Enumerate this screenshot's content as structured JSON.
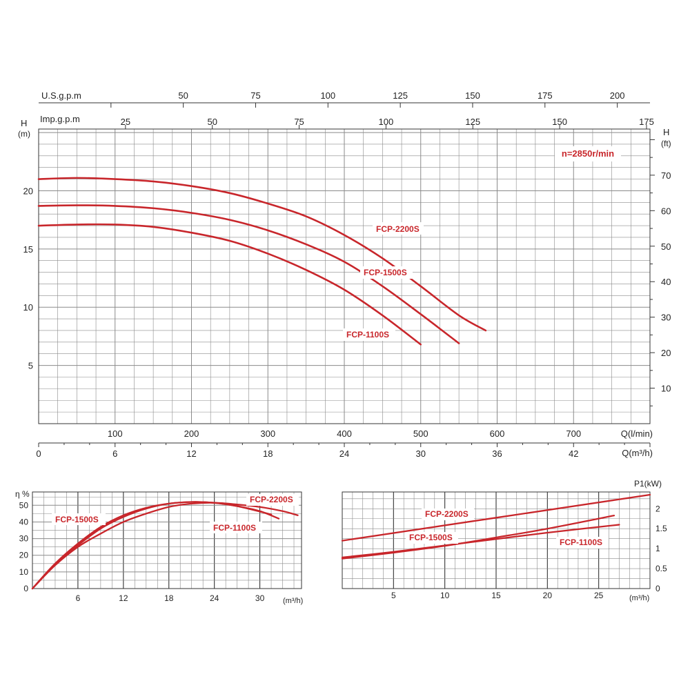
{
  "colors": {
    "curve": "#c8262b",
    "grid": "#8a8a8a",
    "axis": "#333333",
    "text": "#222222",
    "label_bg": "#ffffff"
  },
  "chart_data": [
    {
      "type": "line",
      "name": "head-curve",
      "annotation": "n=2850r/min",
      "axes": {
        "usgpm": {
          "label": "U.S.g.p.m",
          "ticks": [
            50,
            75,
            100,
            125,
            150,
            175,
            200
          ],
          "range": [
            0,
            211.3
          ]
        },
        "impgpm": {
          "label": "Imp.g.p.m",
          "ticks": [
            25,
            50,
            75,
            100,
            125,
            150,
            175
          ],
          "range": [
            0,
            176
          ]
        },
        "h_m": {
          "label_top": "H",
          "label_unit": "(m)",
          "ticks": [
            5,
            10,
            15,
            20
          ],
          "range": [
            0,
            25.3
          ]
        },
        "h_ft": {
          "label_top": "H",
          "label_unit": "(ft)",
          "ticks": [
            10,
            20,
            30,
            40,
            50,
            60,
            70
          ],
          "range": [
            0,
            83
          ]
        },
        "q_lmin": {
          "label": "Q(l/min)",
          "ticks": [
            100,
            200,
            300,
            400,
            500,
            600,
            700
          ],
          "range": [
            0,
            800
          ]
        },
        "q_m3h": {
          "label": "Q(m³/h)",
          "ticks": [
            0,
            6,
            12,
            18,
            24,
            30,
            36,
            42
          ],
          "range": [
            0,
            48
          ]
        }
      },
      "grid": true,
      "series": [
        {
          "name": "FCP-2200S",
          "q_lmin": [
            0,
            50,
            100,
            150,
            200,
            250,
            300,
            350,
            400,
            450,
            500,
            550,
            585
          ],
          "h_m": [
            21.0,
            21.1,
            21.0,
            20.8,
            20.4,
            19.8,
            18.9,
            17.8,
            16.2,
            14.2,
            11.8,
            9.3,
            8.0
          ]
        },
        {
          "name": "FCP-1500S",
          "q_lmin": [
            0,
            50,
            100,
            150,
            200,
            250,
            300,
            350,
            400,
            450,
            500,
            550
          ],
          "h_m": [
            18.7,
            18.75,
            18.7,
            18.5,
            18.1,
            17.5,
            16.6,
            15.4,
            13.9,
            11.8,
            9.4,
            6.9
          ]
        },
        {
          "name": "FCP-1100S",
          "q_lmin": [
            0,
            50,
            100,
            150,
            200,
            250,
            300,
            350,
            400,
            450,
            500
          ],
          "h_m": [
            17.0,
            17.1,
            17.1,
            16.9,
            16.4,
            15.7,
            14.6,
            13.2,
            11.5,
            9.3,
            6.8
          ]
        }
      ]
    },
    {
      "type": "line",
      "name": "efficiency-curve",
      "ylabel": "η %",
      "xlabel": "(m³/h)",
      "xticks": [
        6,
        12,
        18,
        24,
        30
      ],
      "yticks": [
        0,
        10,
        20,
        30,
        40,
        50
      ],
      "xlim": [
        0,
        35.5
      ],
      "ylim": [
        0,
        58
      ],
      "grid": true,
      "series": [
        {
          "name": "FCP-2200S",
          "x": [
            0,
            3,
            6,
            9,
            12,
            15,
            18,
            21,
            24,
            27,
            30,
            33,
            35
          ],
          "y": [
            0,
            14,
            25,
            33,
            40,
            45,
            49,
            51,
            51.5,
            50.5,
            49,
            46.5,
            44
          ]
        },
        {
          "name": "FCP-1500S",
          "x": [
            0,
            3,
            6,
            9,
            12,
            15,
            18,
            21,
            24,
            27,
            31.5
          ],
          "y": [
            0,
            15,
            26,
            36,
            43,
            48,
            51,
            52,
            51.5,
            49.5,
            44.5
          ]
        },
        {
          "name": "FCP-1100S",
          "x": [
            0,
            3,
            6,
            9,
            12,
            15,
            18,
            21,
            24,
            27,
            30,
            32.5
          ],
          "y": [
            0,
            15,
            27,
            37,
            44,
            48.5,
            51,
            52,
            51.5,
            49.5,
            46.5,
            42
          ]
        }
      ]
    },
    {
      "type": "line",
      "name": "power-curve",
      "ylabel": "P1(kW)",
      "xlabel": "(m³/h)",
      "xticks": [
        5,
        10,
        15,
        20,
        25
      ],
      "yticks": [
        0,
        0.5,
        1,
        1.5,
        2
      ],
      "xlim": [
        0,
        30
      ],
      "ylim": [
        0,
        2.42
      ],
      "grid": true,
      "series": [
        {
          "name": "FCP-2200S",
          "x": [
            0,
            30
          ],
          "y": [
            1.2,
            2.35
          ]
        },
        {
          "name": "FCP-1500S",
          "x": [
            0,
            5,
            10,
            15,
            20,
            26.5
          ],
          "y": [
            0.75,
            0.9,
            1.07,
            1.28,
            1.5,
            1.83
          ]
        },
        {
          "name": "FCP-1100S",
          "x": [
            0,
            5,
            10,
            15,
            20,
            27
          ],
          "y": [
            0.78,
            0.92,
            1.08,
            1.24,
            1.4,
            1.6
          ]
        }
      ]
    }
  ]
}
